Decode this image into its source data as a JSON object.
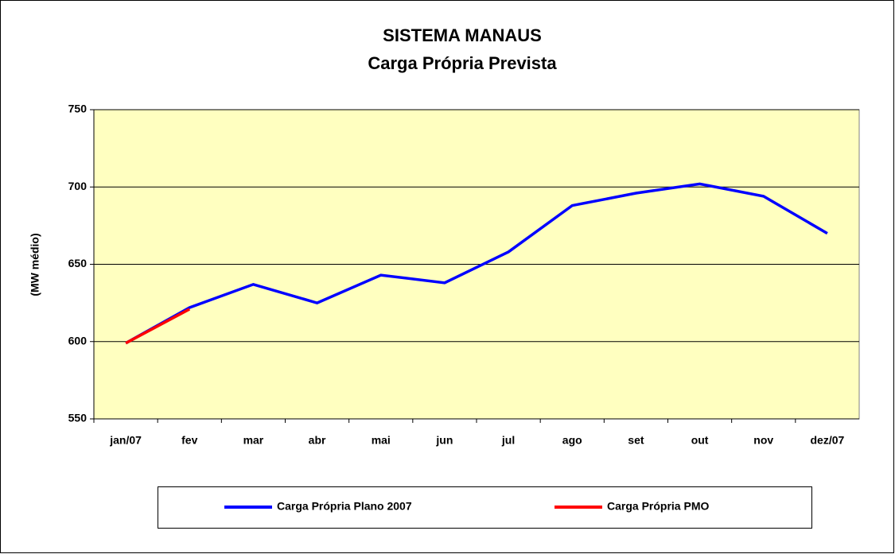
{
  "chart_data": {
    "type": "line",
    "title": "SISTEMA MANAUS",
    "subtitle": "Carga Própria Prevista",
    "y_label": "(MW médio)",
    "categories": [
      "jan/07",
      "fev",
      "mar",
      "abr",
      "mai",
      "jun",
      "jul",
      "ago",
      "set",
      "out",
      "nov",
      "dez/07"
    ],
    "series": [
      {
        "name": "Carga Própria Plano 2007",
        "color": "#0000ff",
        "values": [
          599,
          622,
          637,
          625,
          643,
          638,
          658,
          688,
          696,
          702,
          694,
          670
        ]
      },
      {
        "name": "Carga Própria PMO",
        "color": "#ff0000",
        "values": [
          599,
          621,
          null,
          null,
          null,
          null,
          null,
          null,
          null,
          null,
          null,
          null
        ]
      }
    ],
    "ylim": [
      550,
      750
    ],
    "yticks": [
      550,
      600,
      650,
      700,
      750
    ],
    "grid": true,
    "background": "#ffffc0",
    "legend": "bottom"
  }
}
